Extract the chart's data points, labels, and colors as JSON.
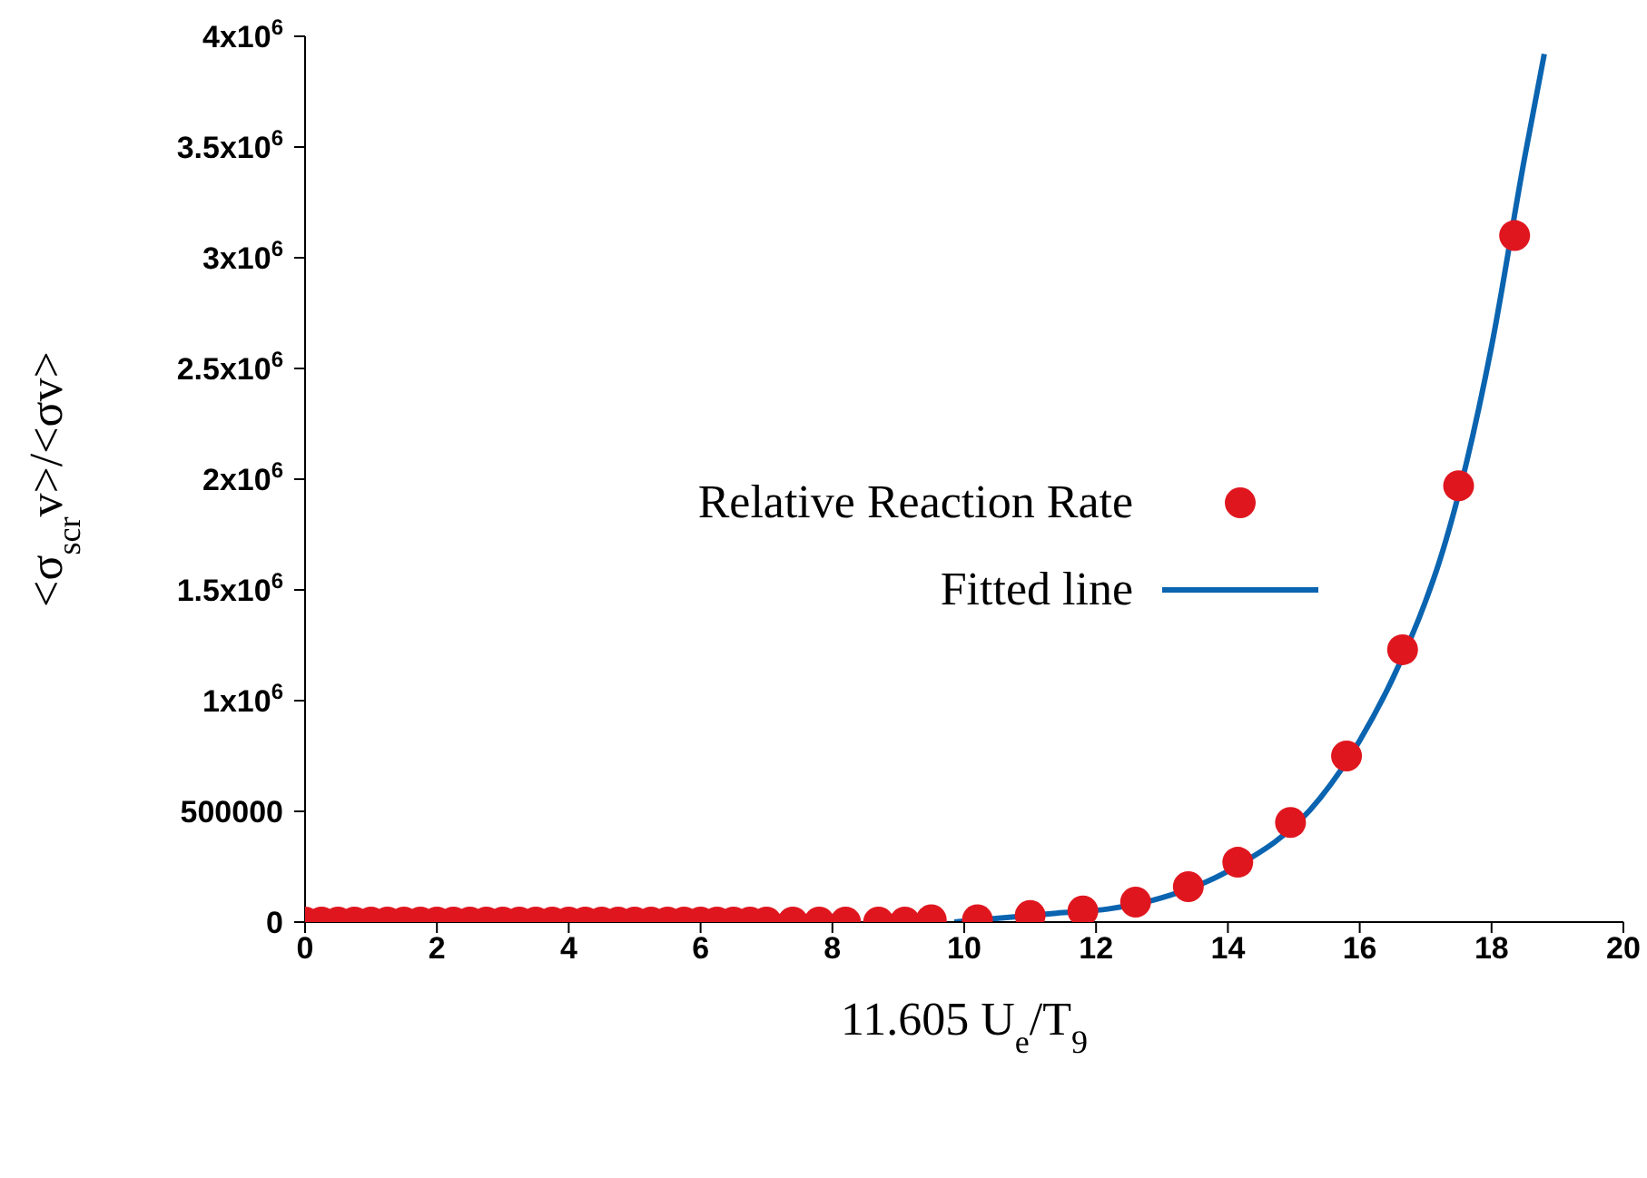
{
  "chart_data": {
    "type": "scatter",
    "xlabel": "11.605 U$_{e}$/T$_{9}$",
    "ylabel": "<σ$_{scr}$v>/<σv>",
    "xlim": [
      0,
      20
    ],
    "xticks": [
      0,
      2,
      4,
      6,
      8,
      10,
      12,
      14,
      16,
      18,
      20
    ],
    "ylim": [
      0,
      4000000
    ],
    "yticks": [
      0,
      500000,
      {
        "value": 1000000,
        "label": "1x10$^{6}$"
      },
      {
        "value": 1500000,
        "label": "1.5x10$^{6}$"
      },
      {
        "value": 2000000,
        "label": "2x10$^{6}$"
      },
      {
        "value": 2500000,
        "label": "2.5x10$^{6}$"
      },
      {
        "value": 3000000,
        "label": "3x10$^{6}$"
      },
      {
        "value": 3500000,
        "label": "3.5x10$^{6}$"
      },
      {
        "value": 4000000,
        "label": "4x10$^{6}$"
      }
    ],
    "legend": "right",
    "grid": false,
    "series": [
      {
        "name": "Relative Reaction Rate",
        "type": "scatter",
        "color": "#e0161f",
        "marker": "circle",
        "x": [
          0,
          0.25,
          0.5,
          0.75,
          1,
          1.25,
          1.5,
          1.75,
          2,
          2.25,
          2.5,
          2.75,
          3,
          3.25,
          3.5,
          3.75,
          4,
          4.25,
          4.5,
          4.75,
          5,
          5.25,
          5.5,
          5.75,
          6,
          6.25,
          6.5,
          6.75,
          7,
          7.4,
          7.8,
          8.2,
          8.7,
          9.1,
          9.5,
          10.2,
          11,
          11.8,
          12.6,
          13.4,
          14.15,
          14.95,
          15.8,
          16.65,
          17.5,
          18.35
        ],
        "values": [
          0,
          0,
          0,
          0,
          0,
          0,
          0,
          0,
          0,
          0,
          0,
          0,
          0,
          0,
          0,
          0,
          0,
          0,
          0,
          0,
          0,
          0,
          0,
          0,
          0,
          0,
          0,
          0,
          0,
          0,
          0,
          0,
          0,
          0,
          10000,
          10000,
          30000,
          50000,
          90000,
          160000,
          270000,
          450000,
          750000,
          1230000,
          1970000,
          3100000
        ]
      },
      {
        "name": "Fitted line",
        "type": "line",
        "color": "#0a64b0",
        "marker": "none",
        "line_style": "solid",
        "x": [
          9.85,
          11.4,
          12.2,
          13,
          14,
          15.4,
          16,
          16.5,
          17,
          17.2,
          18,
          18.5,
          18.8
        ],
        "values": [
          0,
          40000,
          60000,
          110000,
          230000,
          560000,
          820000,
          1100000,
          1450000,
          1620000,
          2600000,
          3450000,
          3920000
        ]
      }
    ]
  }
}
